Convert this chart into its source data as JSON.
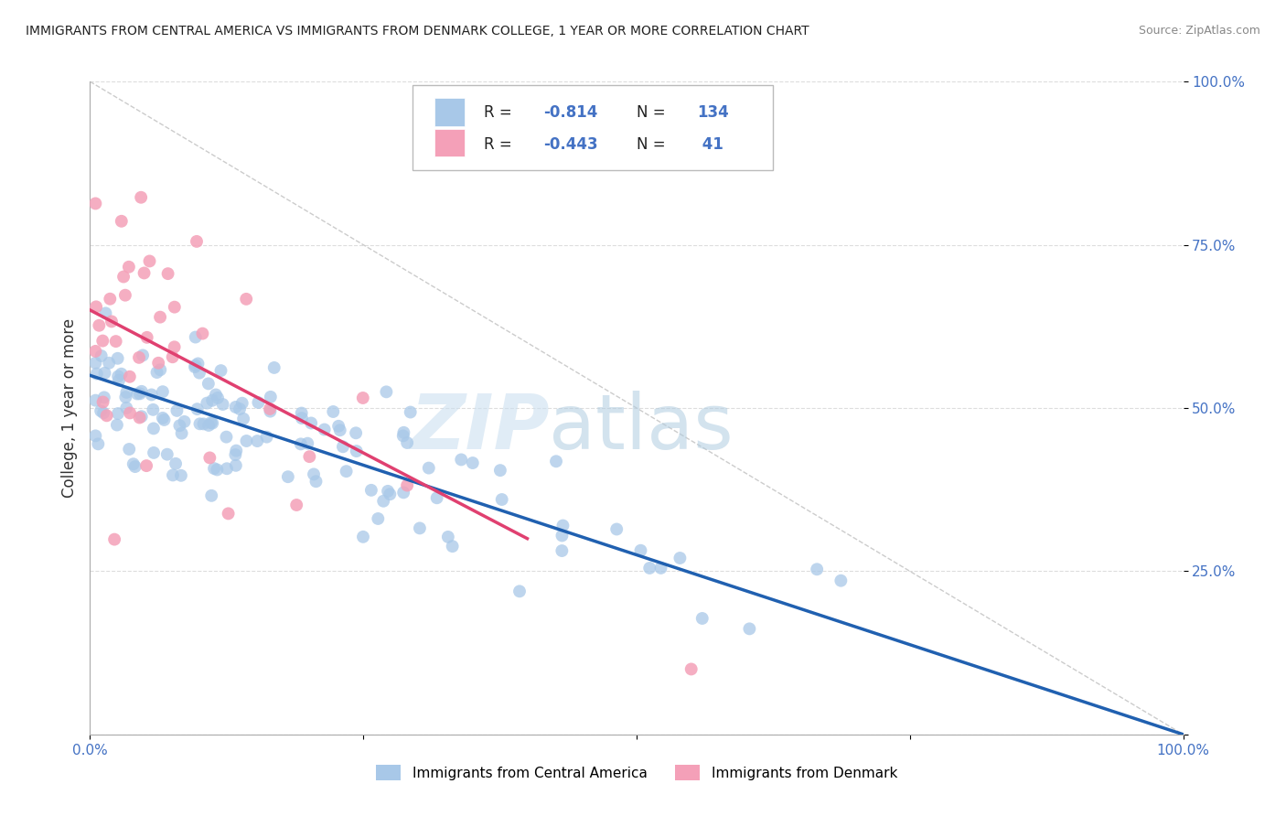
{
  "title": "IMMIGRANTS FROM CENTRAL AMERICA VS IMMIGRANTS FROM DENMARK COLLEGE, 1 YEAR OR MORE CORRELATION CHART",
  "source": "Source: ZipAtlas.com",
  "ylabel": "College, 1 year or more",
  "xlim": [
    0.0,
    1.0
  ],
  "ylim": [
    0.0,
    1.0
  ],
  "legend_r1_val": "-0.814",
  "legend_n1_val": "134",
  "legend_r2_val": "-0.443",
  "legend_n2_val": " 41",
  "color_blue": "#a8c8e8",
  "color_pink": "#f4a0b8",
  "color_blue_line": "#2060b0",
  "color_pink_line": "#e04070",
  "color_diag": "#cccccc",
  "label1": "Immigrants from Central America",
  "label2": "Immigrants from Denmark",
  "blue_line_x": [
    0.0,
    1.0
  ],
  "blue_line_y": [
    0.55,
    0.0
  ],
  "pink_line_x": [
    0.0,
    0.4
  ],
  "pink_line_y": [
    0.65,
    0.3
  ],
  "background_color": "#ffffff",
  "grid_color": "#dddddd",
  "tick_color": "#4472c4"
}
